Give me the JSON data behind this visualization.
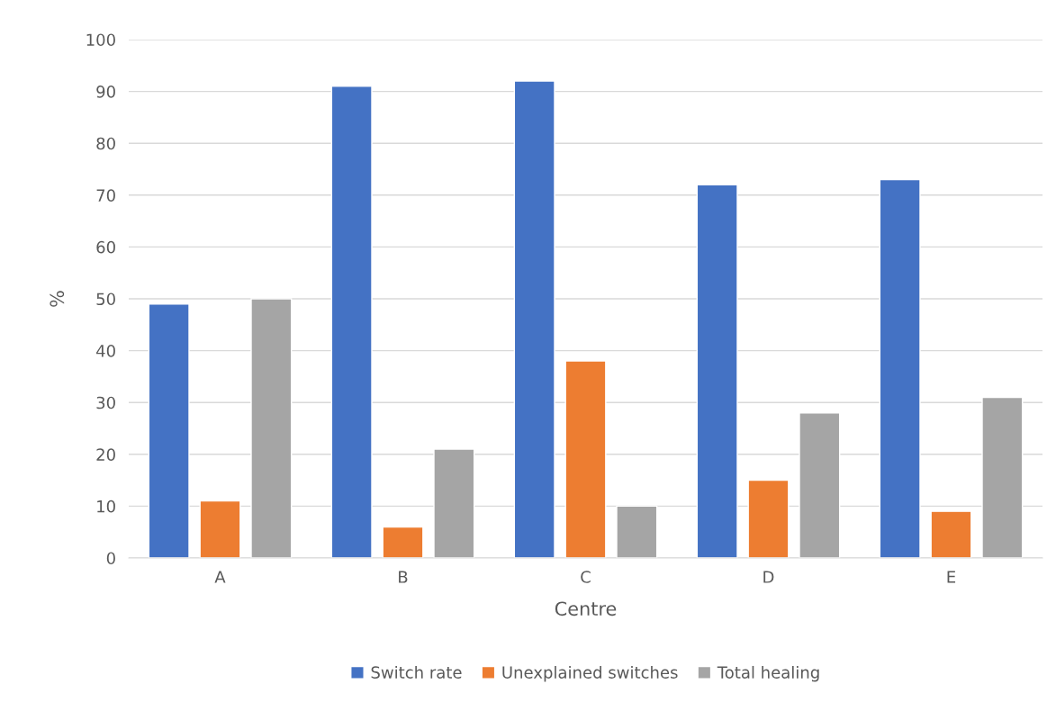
{
  "chart_data": {
    "type": "bar",
    "xlabel": "Centre",
    "ylabel": "%",
    "categories": [
      "A",
      "B",
      "C",
      "D",
      "E"
    ],
    "series": [
      {
        "name": "Switch rate",
        "color": "#4472c4",
        "values": [
          49,
          91,
          92,
          72,
          73
        ]
      },
      {
        "name": "Unexplained switches",
        "color": "#ed7d31",
        "values": [
          11,
          6,
          38,
          15,
          9
        ]
      },
      {
        "name": "Total healing",
        "color": "#a5a5a5",
        "values": [
          50,
          21,
          10,
          28,
          31
        ]
      }
    ],
    "ylim": [
      0,
      100
    ],
    "yticks": [
      0,
      10,
      20,
      30,
      40,
      50,
      60,
      70,
      80,
      90,
      100
    ],
    "grid": "y",
    "legend": "bottom"
  }
}
